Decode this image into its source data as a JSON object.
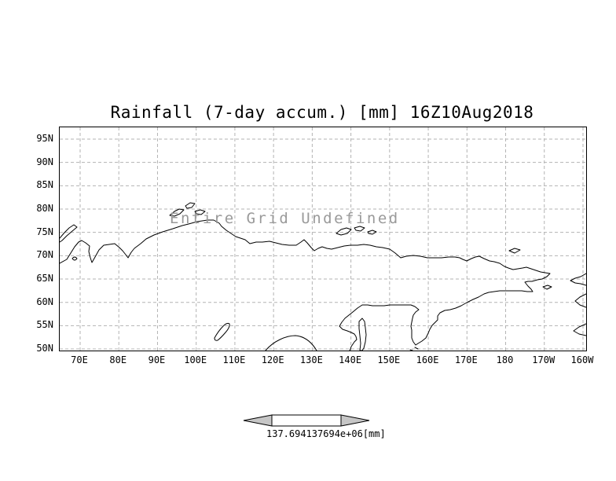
{
  "title": "Rainfall (7-day accum.) [mm] 16Z10Aug2018",
  "overlay_message": "Entire Grid Undefined",
  "axes": {
    "lat_ticks": [
      "95N",
      "90N",
      "85N",
      "80N",
      "75N",
      "70N",
      "65N",
      "60N",
      "55N",
      "50N"
    ],
    "lon_ticks": [
      "70E",
      "80E",
      "90E",
      "100E",
      "110E",
      "120E",
      "130E",
      "140E",
      "150E",
      "160E",
      "170E",
      "180",
      "170W",
      "160W"
    ]
  },
  "colorbar": {
    "label": "137.694137694e+06[mm]"
  },
  "colors": {
    "background": "#ffffff",
    "coastline": "#000000",
    "grid": "#b3b3b3",
    "overlay_text": "#9a9a9a",
    "arrow_fill": "#c6c6c6"
  },
  "chart_data": {
    "type": "heatmap",
    "title": "Rainfall (7-day accum.) [mm] 16Z10Aug2018",
    "variable": "Rainfall (7-day accum.)",
    "units": "mm",
    "valid_time": "16Z10Aug2018",
    "x_tick_labels": [
      "70E",
      "80E",
      "90E",
      "100E",
      "110E",
      "120E",
      "130E",
      "140E",
      "150E",
      "160E",
      "170E",
      "180",
      "170W",
      "160W"
    ],
    "y_tick_labels": [
      "95N",
      "90N",
      "85N",
      "80N",
      "75N",
      "70N",
      "65N",
      "60N",
      "55N",
      "50N"
    ],
    "xlim_deg_east": [
      65,
      201
    ],
    "ylim_deg_north": [
      49.7,
      97.5
    ],
    "grid": "dashed graticule every 10 deg lon / 5 deg lat",
    "legend_position": "bottom-center arrow colorbar",
    "values": null,
    "annotation": "Entire Grid Undefined",
    "colorbar_label": "137.694137694e+06[mm]"
  }
}
